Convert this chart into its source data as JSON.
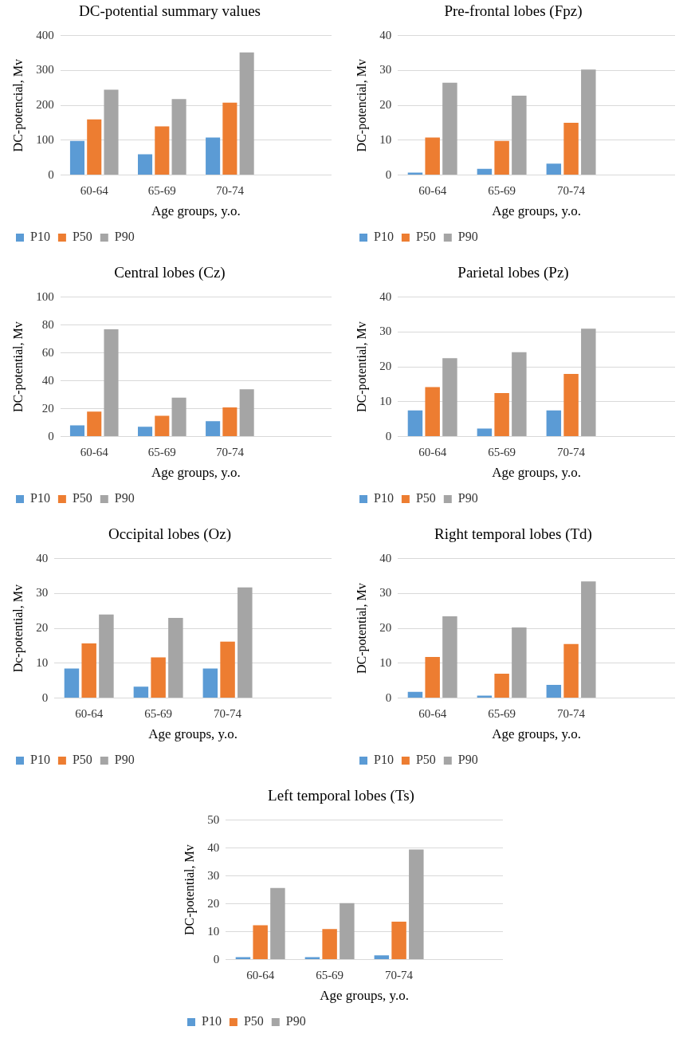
{
  "chart_data": [
    {
      "type": "bar",
      "title": "DC-potential summary values",
      "xlabel": "Age groups, y.o.",
      "ylabel": "DC-potencial, Mv",
      "categories": [
        "60-64",
        "65-69",
        "70-74",
        null
      ],
      "ylim": [
        0,
        400
      ],
      "yticks": [
        0,
        100,
        200,
        300,
        400
      ],
      "grid": "y",
      "legend": "bottom",
      "series": [
        {
          "name": "P10",
          "color": "#5b9bd5",
          "values": [
            98,
            60,
            108,
            null
          ]
        },
        {
          "name": "P50",
          "color": "#ed7d31",
          "values": [
            160,
            140,
            208,
            null
          ]
        },
        {
          "name": "P90",
          "color": "#a5a5a5",
          "values": [
            245,
            218,
            352,
            null
          ]
        }
      ]
    },
    {
      "type": "bar",
      "title": "Pre-frontal lobes (Fpz)",
      "xlabel": "Age groups, y.o.",
      "ylabel": "DC-potencial, Mv",
      "categories": [
        "60-64",
        "65-69",
        "70-74",
        null
      ],
      "ylim": [
        0,
        40
      ],
      "yticks": [
        0,
        10,
        20,
        30,
        40
      ],
      "grid": "y",
      "legend": "bottom",
      "series": [
        {
          "name": "P10",
          "color": "#5b9bd5",
          "values": [
            0.7,
            1.8,
            3.3,
            null
          ]
        },
        {
          "name": "P50",
          "color": "#ed7d31",
          "values": [
            10.8,
            9.8,
            15,
            null
          ]
        },
        {
          "name": "P90",
          "color": "#a5a5a5",
          "values": [
            26.5,
            22.8,
            30.3,
            null
          ]
        }
      ]
    },
    {
      "type": "bar",
      "title": "Central lobes (Cz)",
      "xlabel": "Age groups, y.o.",
      "ylabel": "DC-potential, Mv",
      "categories": [
        "60-64",
        "65-69",
        "70-74",
        null
      ],
      "ylim": [
        0,
        100
      ],
      "yticks": [
        0,
        20,
        40,
        60,
        80,
        100
      ],
      "grid": "y",
      "legend": "bottom",
      "series": [
        {
          "name": "P10",
          "color": "#5b9bd5",
          "values": [
            8,
            7,
            11,
            null
          ]
        },
        {
          "name": "P50",
          "color": "#ed7d31",
          "values": [
            18,
            15,
            21,
            null
          ]
        },
        {
          "name": "P90",
          "color": "#a5a5a5",
          "values": [
            77,
            28,
            34,
            null
          ]
        }
      ]
    },
    {
      "type": "bar",
      "title": "Parietal lobes (Pz)",
      "xlabel": "Age groups, y.o.",
      "ylabel": "DC-potential, Mv",
      "categories": [
        "60-64",
        "65-69",
        "70-74",
        null
      ],
      "ylim": [
        0,
        40
      ],
      "yticks": [
        0,
        10,
        20,
        30,
        40
      ],
      "grid": "y",
      "legend": "bottom",
      "series": [
        {
          "name": "P10",
          "color": "#5b9bd5",
          "values": [
            7.5,
            2.3,
            7.5,
            null
          ]
        },
        {
          "name": "P50",
          "color": "#ed7d31",
          "values": [
            14.2,
            12.5,
            18,
            null
          ]
        },
        {
          "name": "P90",
          "color": "#a5a5a5",
          "values": [
            22.5,
            24.2,
            31,
            null
          ]
        }
      ]
    },
    {
      "type": "bar",
      "title": "Occipital lobes (Oz)",
      "xlabel": "Age groups, y.o.",
      "ylabel": "Dc-potential, Mv",
      "categories": [
        "60-64",
        "65-69",
        "70-74",
        null
      ],
      "ylim": [
        0,
        40
      ],
      "yticks": [
        0,
        10,
        20,
        30,
        40
      ],
      "grid": "y",
      "legend": "bottom",
      "series": [
        {
          "name": "P10",
          "color": "#5b9bd5",
          "values": [
            8.5,
            3.3,
            8.5,
            null
          ]
        },
        {
          "name": "P50",
          "color": "#ed7d31",
          "values": [
            15.7,
            11.7,
            16.2,
            null
          ]
        },
        {
          "name": "P90",
          "color": "#a5a5a5",
          "values": [
            24,
            23,
            31.8,
            null
          ]
        }
      ]
    },
    {
      "type": "bar",
      "title": "Right temporal lobes (Td)",
      "xlabel": "Age groups, y.o.",
      "ylabel": "DC-potential, Mv",
      "categories": [
        "60-64",
        "65-69",
        "70-74",
        null
      ],
      "ylim": [
        0,
        40
      ],
      "yticks": [
        0,
        10,
        20,
        30,
        40
      ],
      "grid": "y",
      "legend": "bottom",
      "series": [
        {
          "name": "P10",
          "color": "#5b9bd5",
          "values": [
            1.8,
            0.7,
            3.8,
            null
          ]
        },
        {
          "name": "P50",
          "color": "#ed7d31",
          "values": [
            11.8,
            7,
            15.5,
            null
          ]
        },
        {
          "name": "P90",
          "color": "#a5a5a5",
          "values": [
            23.5,
            20.3,
            33.5,
            null
          ]
        }
      ]
    },
    {
      "type": "bar",
      "title": "Left temporal lobes (Ts)",
      "xlabel": "Age groups, y.o.",
      "ylabel": "DC-potential, Mv",
      "categories": [
        "60-64",
        "65-69",
        "70-74",
        null
      ],
      "ylim": [
        0,
        50
      ],
      "yticks": [
        0,
        10,
        20,
        30,
        40,
        50
      ],
      "grid": "y",
      "legend": "bottom",
      "series": [
        {
          "name": "P10",
          "color": "#5b9bd5",
          "values": [
            0.9,
            0.9,
            1.5,
            null
          ]
        },
        {
          "name": "P50",
          "color": "#ed7d31",
          "values": [
            12.3,
            11,
            13.6,
            null
          ]
        },
        {
          "name": "P90",
          "color": "#a5a5a5",
          "values": [
            25.7,
            20.3,
            39.5,
            null
          ]
        }
      ]
    }
  ]
}
